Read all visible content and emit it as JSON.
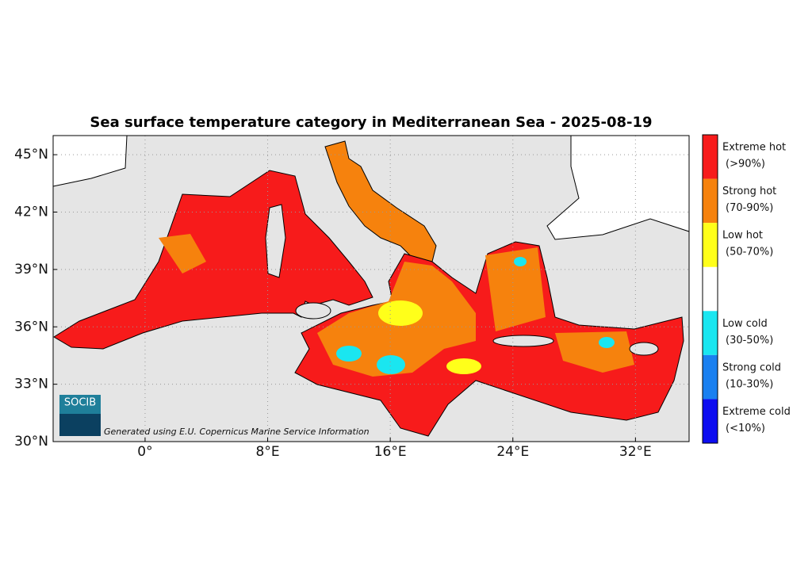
{
  "chart_data": {
    "type": "map",
    "title": "Sea surface temperature category in Mediterranean Sea - 2025-08-19",
    "annotation": "Generated using E.U. Copernicus Marine Service Information",
    "logo": "SOCIB",
    "xlim": [
      -6,
      35.5
    ],
    "ylim": [
      30,
      46
    ],
    "xticks": [
      {
        "value": 0,
        "label": "0°"
      },
      {
        "value": 8,
        "label": "8°E"
      },
      {
        "value": 16,
        "label": "16°E"
      },
      {
        "value": 24,
        "label": "24°E"
      },
      {
        "value": 32,
        "label": "32°E"
      }
    ],
    "yticks": [
      {
        "value": 30,
        "label": "30°N"
      },
      {
        "value": 33,
        "label": "33°N"
      },
      {
        "value": 36,
        "label": "36°N"
      },
      {
        "value": 39,
        "label": "39°N"
      },
      {
        "value": 42,
        "label": "42°N"
      },
      {
        "value": 45,
        "label": "45°N"
      }
    ],
    "grid": true,
    "legend": [
      {
        "name": "Extreme hot",
        "range": "(>90%)",
        "color": "#f71b1b"
      },
      {
        "name": "Strong hot",
        "range": "(70-90%)",
        "color": "#f6820d"
      },
      {
        "name": "Low hot",
        "range": "(50-70%)",
        "color": "#ffff1a"
      },
      {
        "name": "Low cold",
        "range": "(30-50%)",
        "color": "#1ae6f0"
      },
      {
        "name": "Strong cold",
        "range": "(10-30%)",
        "color": "#1a80f0"
      },
      {
        "name": "Extreme cold",
        "range": "(<10%)",
        "color": "#0d0df0"
      }
    ]
  }
}
